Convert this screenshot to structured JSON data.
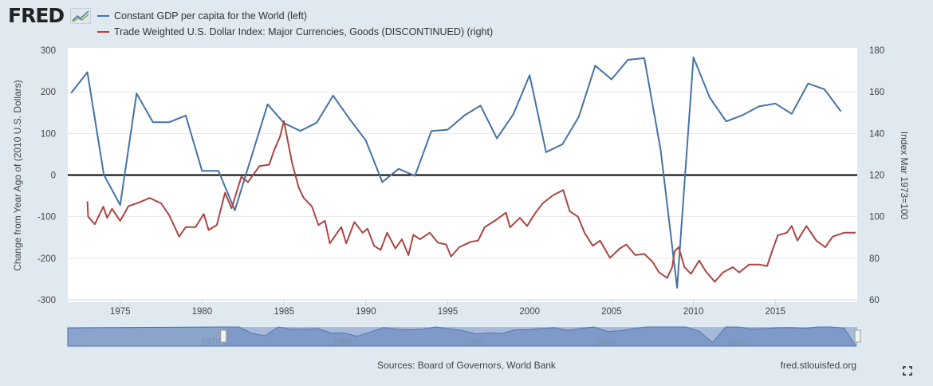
{
  "header": {
    "logo_text": "FRED",
    "legend": [
      {
        "label": "Constant GDP per capita for the World (left)",
        "color": "#4572a7"
      },
      {
        "label": "Trade Weighted U.S. Dollar Index: Major Currencies, Goods (DISCONTINUED) (right)",
        "color": "#aa4643"
      }
    ]
  },
  "footer": {
    "sources": "Sources: Board of Governors, World Bank",
    "site": "fred.stlouisfed.org",
    "fullscreen_icon": "fullscreen-icon"
  },
  "navigator": {
    "labels": [
      "1970",
      "1980",
      "1990",
      "2000",
      "2010"
    ],
    "range": [
      1960,
      2020
    ],
    "selected": [
      1971.8,
      2020
    ]
  },
  "chart_data": {
    "type": "line",
    "title": "",
    "xlabel": "",
    "ylabel_left": "Change from Year Ago of (2010 U.S. Dollars)",
    "ylabel_right": "Index Mar 1973=100",
    "xlim": [
      1971.8,
      2020
    ],
    "ylim_left": [
      -300,
      300
    ],
    "ylim_right": [
      60,
      180
    ],
    "x_ticks": [
      "1975",
      "1980",
      "1985",
      "1990",
      "1995",
      "2000",
      "2005",
      "2010",
      "2015"
    ],
    "y_ticks_left": [
      "300",
      "200",
      "100",
      "0",
      "-100",
      "-200",
      "-300"
    ],
    "y_ticks_right": [
      "180",
      "160",
      "140",
      "120",
      "100",
      "80",
      "60"
    ],
    "grid": true,
    "zero_line": true,
    "legend_position": "top-left",
    "series": [
      {
        "name": "Constant GDP per capita for the World (left)",
        "axis": "left",
        "color": "#4572a7",
        "x": [
          1972,
          1973,
          1974,
          1975,
          1976,
          1977,
          1978,
          1979,
          1980,
          1981,
          1982,
          1983,
          1984,
          1985,
          1986,
          1987,
          1988,
          1989,
          1990,
          1991,
          1992,
          1993,
          1994,
          1995,
          1996,
          1997,
          1998,
          1999,
          2000,
          2001,
          2002,
          2003,
          2004,
          2005,
          2006,
          2007,
          2008,
          2009,
          2010,
          2011,
          2012,
          2013,
          2014,
          2015,
          2016,
          2017,
          2018,
          2019
        ],
        "values": [
          197,
          247,
          1,
          -72,
          196,
          127,
          127,
          143,
          10,
          10,
          -85,
          42,
          170,
          125,
          106,
          126,
          191,
          135,
          83,
          -17,
          15,
          -2,
          106,
          109,
          143,
          167,
          88,
          146,
          240,
          55,
          74,
          140,
          263,
          230,
          277,
          281,
          60,
          -271,
          283,
          186,
          129,
          144,
          165,
          172,
          147,
          220,
          206,
          153
        ]
      },
      {
        "name": "Trade Weighted U.S. Dollar Index: Major Currencies, Goods (DISCONTINUED) (right)",
        "axis": "right",
        "color": "#aa4643",
        "x": [
          1973.0,
          1973.04,
          1973.45,
          1973.97,
          1974.2,
          1974.5,
          1975.0,
          1975.5,
          1976.2,
          1976.8,
          1977.5,
          1978.0,
          1978.6,
          1979.0,
          1979.6,
          1980.1,
          1980.4,
          1980.9,
          1981.4,
          1981.8,
          1982.4,
          1982.8,
          1983.5,
          1984.1,
          1984.4,
          1984.75,
          1985.0,
          1985.2,
          1985.5,
          1985.9,
          1986.2,
          1986.7,
          1987.1,
          1987.5,
          1987.8,
          1988.5,
          1988.8,
          1989.3,
          1989.8,
          1990.1,
          1990.5,
          1990.9,
          1991.3,
          1991.8,
          1992.2,
          1992.6,
          1992.9,
          1993.3,
          1993.9,
          1994.4,
          1994.9,
          1995.2,
          1995.7,
          1996.4,
          1996.85,
          1997.25,
          1998.0,
          1998.55,
          1998.8,
          1999.4,
          1999.85,
          2000.3,
          2000.8,
          2001.4,
          2002.05,
          2002.45,
          2002.95,
          2003.35,
          2003.85,
          2004.3,
          2004.9,
          2005.5,
          2005.9,
          2006.45,
          2007.0,
          2007.5,
          2007.9,
          2008.4,
          2008.7,
          2008.85,
          2009.1,
          2009.45,
          2009.85,
          2010.35,
          2010.75,
          2011.3,
          2011.8,
          2012.4,
          2012.8,
          2013.4,
          2014.0,
          2014.5,
          2014.8,
          2015.15,
          2015.7,
          2016.0,
          2016.35,
          2016.9,
          2017.5,
          2018.05,
          2018.5,
          2019.2,
          2019.9
        ],
        "values": [
          107.4,
          100,
          96.4,
          104.8,
          99.4,
          103.8,
          98,
          105,
          107,
          109,
          106.4,
          100.6,
          90.4,
          95,
          95,
          101.3,
          93.6,
          96,
          111.5,
          104,
          119.2,
          116.6,
          124.3,
          125,
          132,
          138.3,
          146,
          137.7,
          125.6,
          114,
          109,
          105,
          96,
          98,
          87.2,
          95,
          87.2,
          97.4,
          92.3,
          94.2,
          86,
          84,
          92.3,
          84.7,
          89.1,
          81.5,
          91.3,
          89.1,
          92.3,
          87.5,
          86.6,
          80.8,
          85.3,
          87.9,
          88.5,
          94.9,
          98.7,
          101.9,
          94.9,
          99.4,
          95.5,
          101.3,
          106.4,
          110.2,
          112.8,
          102.6,
          100,
          92.3,
          86,
          88.5,
          80.2,
          84.7,
          86.6,
          81.5,
          82.1,
          78.3,
          73.2,
          70.6,
          75.7,
          83.4,
          85.3,
          75.7,
          72.5,
          78.9,
          73.8,
          68.7,
          73.2,
          75.7,
          73.2,
          77,
          77,
          76.3,
          83.4,
          91,
          92.3,
          95.5,
          88.5,
          95.5,
          88.5,
          85.3,
          90.4,
          92.3,
          92.3
        ]
      }
    ]
  }
}
